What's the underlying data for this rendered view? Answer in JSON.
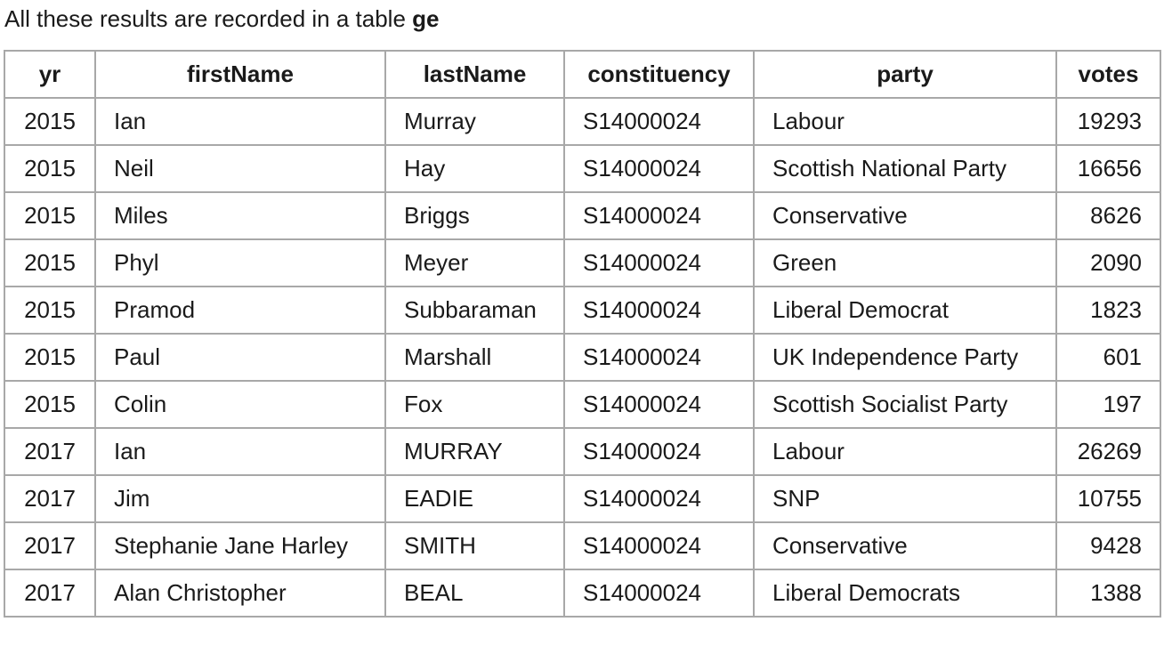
{
  "intro": {
    "text": "All these results are recorded in a table ",
    "table_name": "ge"
  },
  "table": {
    "columns": [
      "yr",
      "firstName",
      "lastName",
      "constituency",
      "party",
      "votes"
    ],
    "rows": [
      [
        "2015",
        "Ian",
        "Murray",
        "S14000024",
        "Labour",
        "19293"
      ],
      [
        "2015",
        "Neil",
        "Hay",
        "S14000024",
        "Scottish National Party",
        "16656"
      ],
      [
        "2015",
        "Miles",
        "Briggs",
        "S14000024",
        "Conservative",
        "8626"
      ],
      [
        "2015",
        "Phyl",
        "Meyer",
        "S14000024",
        "Green",
        "2090"
      ],
      [
        "2015",
        "Pramod",
        "Subbaraman",
        "S14000024",
        "Liberal Democrat",
        "1823"
      ],
      [
        "2015",
        "Paul",
        "Marshall",
        "S14000024",
        "UK Independence Party",
        "601"
      ],
      [
        "2015",
        "Colin",
        "Fox",
        "S14000024",
        "Scottish Socialist Party",
        "197"
      ],
      [
        "2017",
        "Ian",
        "MURRAY",
        "S14000024",
        "Labour",
        "26269"
      ],
      [
        "2017",
        "Jim",
        "EADIE",
        "S14000024",
        "SNP",
        "10755"
      ],
      [
        "2017",
        "Stephanie Jane Harley",
        "SMITH",
        "S14000024",
        "Conservative",
        "9428"
      ],
      [
        "2017",
        "Alan Christopher",
        "BEAL",
        "S14000024",
        "Liberal Democrats",
        "1388"
      ]
    ]
  }
}
